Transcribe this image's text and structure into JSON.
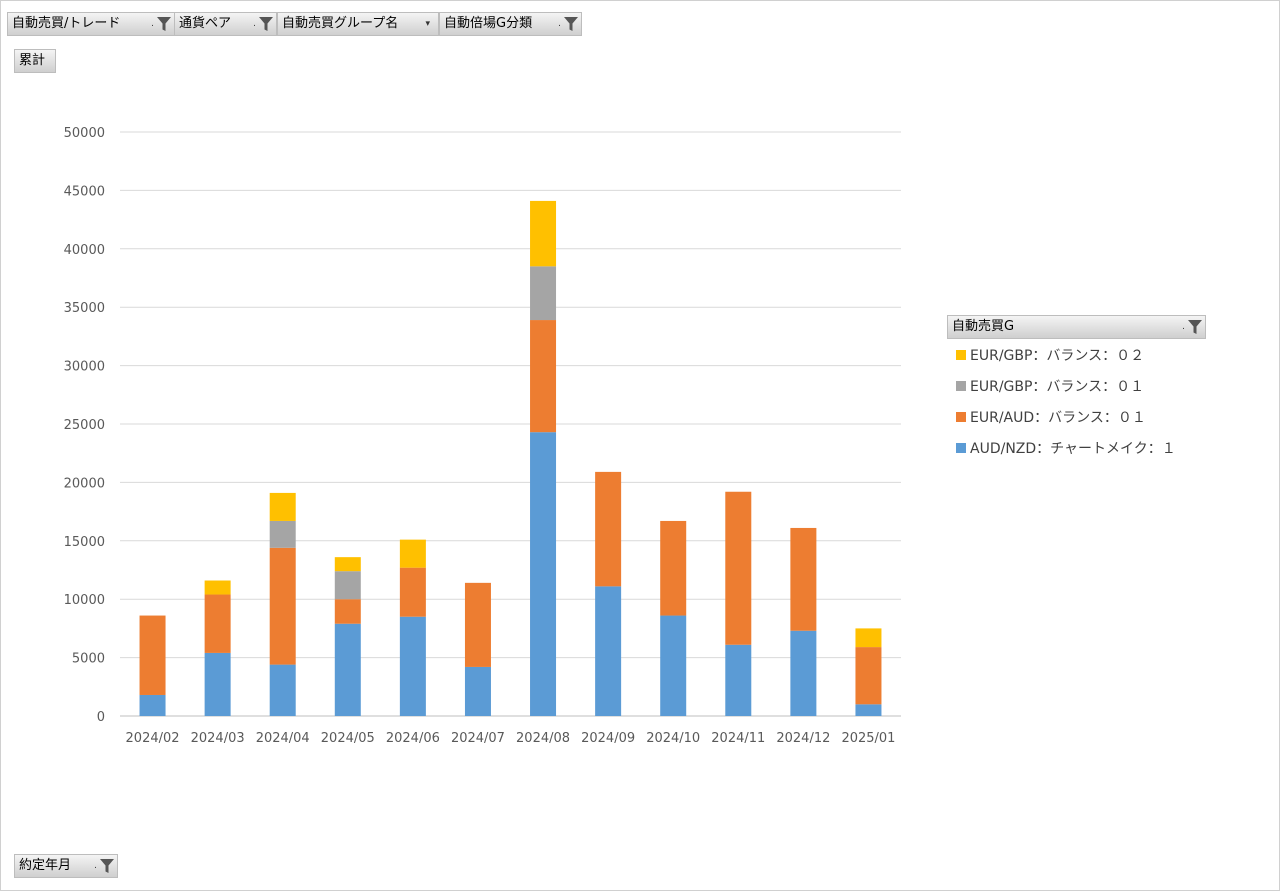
{
  "filter_buttons": [
    {
      "label": "自動売買/トレード",
      "has_filter": true
    },
    {
      "label": "通貨ペア",
      "has_filter": true
    },
    {
      "label": "自動売買グループ名",
      "has_filter": false
    },
    {
      "label": "自動倍場G分類",
      "has_filter": true
    }
  ],
  "values_button": {
    "label": "累計"
  },
  "axis_button": {
    "label": "約定年月"
  },
  "legend": {
    "title": "自動売買G",
    "has_filter": true,
    "items": [
      {
        "name": "EUR/GBP：バランス：０２",
        "color": "#ffc000"
      },
      {
        "name": "EUR/GBP：バランス：０１",
        "color": "#a5a5a5"
      },
      {
        "name": "EUR/AUD：バランス：０１",
        "color": "#ed7d31"
      },
      {
        "name": "AUD/NZD：チャートメイク：１",
        "color": "#5b9bd5"
      }
    ]
  },
  "chart_data": {
    "type": "bar",
    "stacked": true,
    "categories": [
      "2024/02",
      "2024/03",
      "2024/04",
      "2024/05",
      "2024/06",
      "2024/07",
      "2024/08",
      "2024/09",
      "2024/10",
      "2024/11",
      "2024/12",
      "2025/01"
    ],
    "series": [
      {
        "name": "AUD/NZD：チャートメイク：１",
        "color": "#5b9bd5",
        "values": [
          1800,
          5400,
          4400,
          7900,
          8500,
          4200,
          24300,
          11100,
          8600,
          6100,
          7300,
          1000
        ]
      },
      {
        "name": "EUR/AUD：バランス：０１",
        "color": "#ed7d31",
        "values": [
          6800,
          5000,
          10000,
          2100,
          4200,
          7200,
          9600,
          9800,
          8100,
          13100,
          8800,
          4900
        ]
      },
      {
        "name": "EUR/GBP：バランス：０１",
        "color": "#a5a5a5",
        "values": [
          0,
          0,
          2300,
          2400,
          0,
          0,
          4600,
          0,
          0,
          0,
          0,
          0
        ]
      },
      {
        "name": "EUR/GBP：バランス：０２",
        "color": "#ffc000",
        "values": [
          0,
          1200,
          2400,
          1200,
          2400,
          0,
          5600,
          0,
          0,
          0,
          0,
          1600
        ]
      }
    ],
    "ylim": [
      0,
      50000
    ],
    "yticks": [
      "0",
      "5000",
      "10000",
      "15000",
      "20000",
      "25000",
      "30000",
      "35000",
      "40000",
      "45000",
      "50000"
    ],
    "grid": true,
    "legend_position": "right"
  }
}
